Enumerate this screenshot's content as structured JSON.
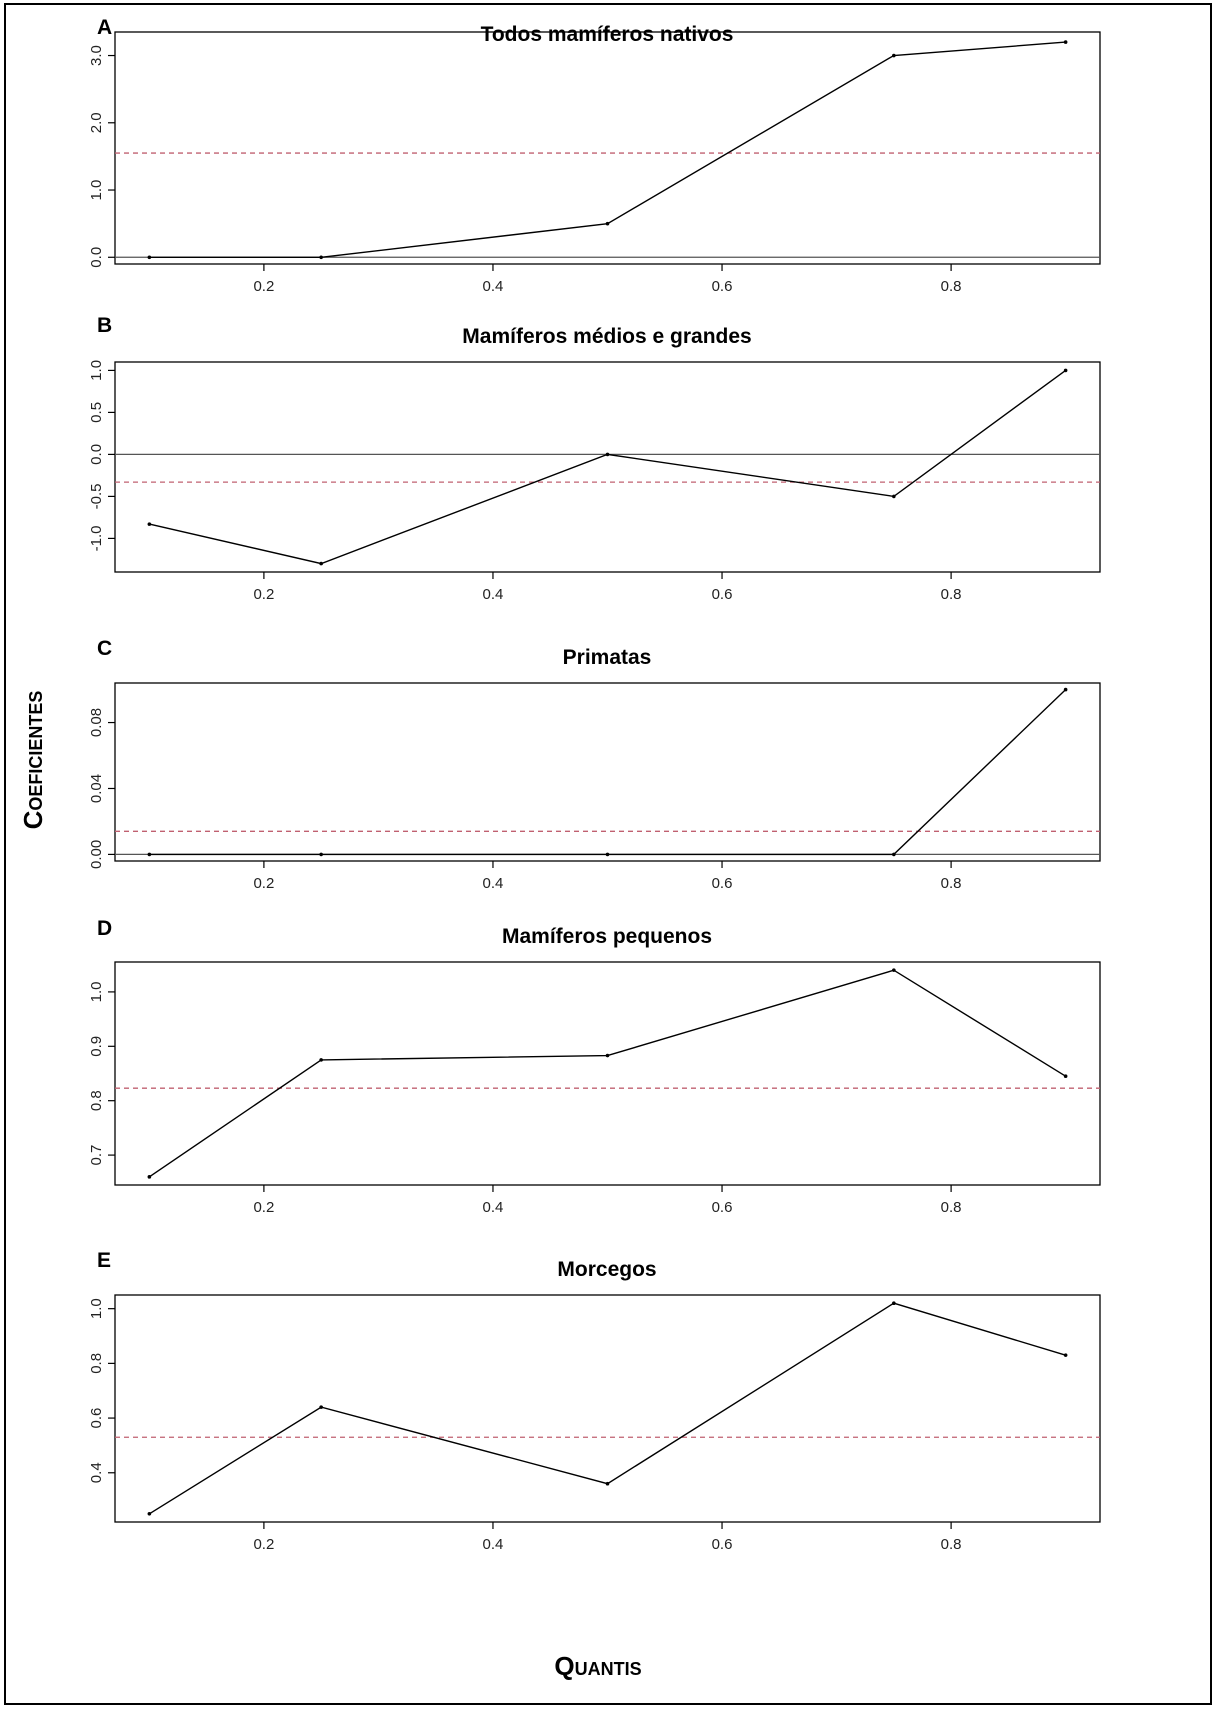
{
  "figure": {
    "y_label": "Coeficientes",
    "x_label": "Quantis"
  },
  "colors": {
    "line": "#000000",
    "zero_line": "#555555",
    "mean_line": "#c06070"
  },
  "chart_data": [
    {
      "type": "line",
      "panel_label": "A",
      "title": "Todos mamíferos nativos",
      "x": [
        0.1,
        0.25,
        0.5,
        0.75,
        0.9
      ],
      "series": [
        {
          "values": [
            0,
            0,
            0.5,
            3.0,
            3.2
          ]
        }
      ],
      "mean_line": 1.55,
      "xlim": [
        0.07,
        0.93
      ],
      "ylim": [
        -0.1,
        3.35
      ],
      "xticks": [
        0.2,
        0.4,
        0.6,
        0.8
      ],
      "xtick_labels": [
        "0.2",
        "0.4",
        "0.6",
        "0.8"
      ],
      "yticks": [
        0.0,
        1.0,
        2.0,
        3.0
      ],
      "ytick_labels": [
        "0.0",
        "1.0",
        "2.0",
        "3.0"
      ]
    },
    {
      "type": "line",
      "panel_label": "B",
      "title": "Mamíferos médios e grandes",
      "x": [
        0.1,
        0.25,
        0.5,
        0.75,
        0.9
      ],
      "series": [
        {
          "values": [
            -0.83,
            -1.3,
            0.0,
            -0.5,
            1.0
          ]
        }
      ],
      "mean_line": -0.33,
      "xlim": [
        0.07,
        0.93
      ],
      "ylim": [
        -1.4,
        1.1
      ],
      "xticks": [
        0.2,
        0.4,
        0.6,
        0.8
      ],
      "xtick_labels": [
        "0.2",
        "0.4",
        "0.6",
        "0.8"
      ],
      "yticks": [
        -1.0,
        -0.5,
        0.0,
        0.5,
        1.0
      ],
      "ytick_labels": [
        "-1.0",
        "-0.5",
        "0.0",
        "0.5",
        "1.0"
      ]
    },
    {
      "type": "line",
      "panel_label": "C",
      "title": "Primatas",
      "x": [
        0.1,
        0.25,
        0.5,
        0.75,
        0.9
      ],
      "series": [
        {
          "values": [
            0,
            0,
            0,
            0,
            0.1
          ]
        }
      ],
      "mean_line": 0.014,
      "xlim": [
        0.07,
        0.93
      ],
      "ylim": [
        -0.004,
        0.104
      ],
      "xticks": [
        0.2,
        0.4,
        0.6,
        0.8
      ],
      "xtick_labels": [
        "0.2",
        "0.4",
        "0.6",
        "0.8"
      ],
      "yticks": [
        0.0,
        0.04,
        0.08
      ],
      "ytick_labels": [
        "0.00",
        "0.04",
        "0.08"
      ]
    },
    {
      "type": "line",
      "panel_label": "D",
      "title": "Mamíferos pequenos",
      "x": [
        0.1,
        0.25,
        0.5,
        0.75,
        0.9
      ],
      "series": [
        {
          "values": [
            0.66,
            0.875,
            0.883,
            1.04,
            0.845
          ]
        }
      ],
      "mean_line": 0.823,
      "xlim": [
        0.07,
        0.93
      ],
      "ylim": [
        0.645,
        1.055
      ],
      "xticks": [
        0.2,
        0.4,
        0.6,
        0.8
      ],
      "xtick_labels": [
        "0.2",
        "0.4",
        "0.6",
        "0.8"
      ],
      "yticks": [
        0.7,
        0.8,
        0.9,
        1.0
      ],
      "ytick_labels": [
        "0.7",
        "0.8",
        "0.9",
        "1.0"
      ]
    },
    {
      "type": "line",
      "panel_label": "E",
      "title": "Morcegos",
      "x": [
        0.1,
        0.25,
        0.5,
        0.75,
        0.9
      ],
      "series": [
        {
          "values": [
            0.25,
            0.64,
            0.36,
            1.02,
            0.83
          ]
        }
      ],
      "mean_line": 0.53,
      "xlim": [
        0.07,
        0.93
      ],
      "ylim": [
        0.22,
        1.05
      ],
      "xticks": [
        0.2,
        0.4,
        0.6,
        0.8
      ],
      "xtick_labels": [
        "0.2",
        "0.4",
        "0.6",
        "0.8"
      ],
      "yticks": [
        0.4,
        0.6,
        0.8,
        1.0
      ],
      "ytick_labels": [
        "0.4",
        "0.6",
        "0.8",
        "1.0"
      ]
    }
  ]
}
